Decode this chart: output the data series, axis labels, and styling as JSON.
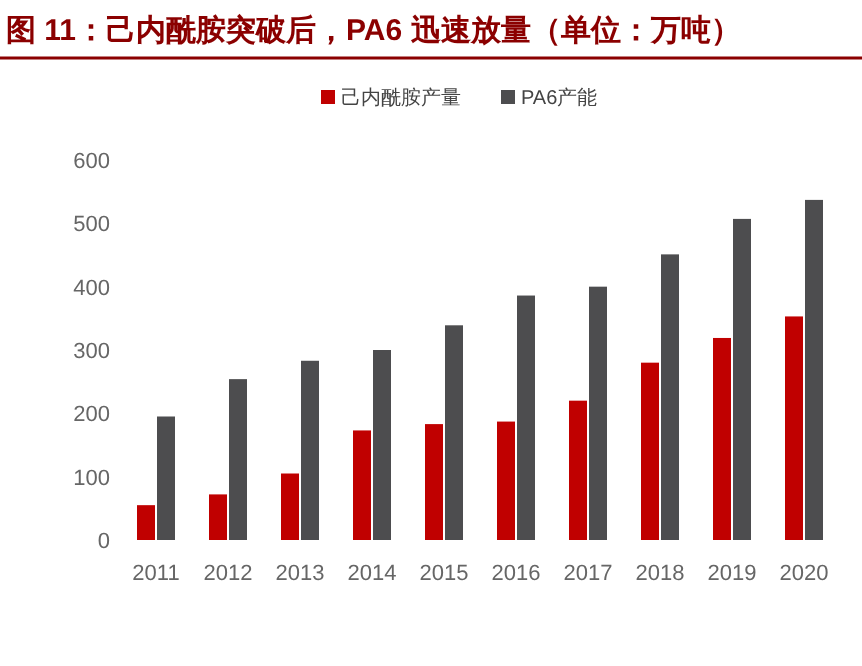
{
  "chart_data": {
    "type": "bar",
    "title": "图 11：己内酰胺突破后，PA6 迅速放量（单位：万吨）",
    "categories": [
      "2011",
      "2012",
      "2013",
      "2014",
      "2015",
      "2016",
      "2017",
      "2018",
      "2019",
      "2020"
    ],
    "series": [
      {
        "name": "己内酰胺产量",
        "color": "#c00000",
        "values": [
          55,
          72,
          105,
          173,
          183,
          187,
          220,
          280,
          319,
          353
        ]
      },
      {
        "name": "PA6产能",
        "color": "#4d4d4f",
        "values": [
          195,
          254,
          283,
          300,
          339,
          386,
          400,
          451,
          507,
          537
        ]
      }
    ],
    "ylim": [
      0,
      600
    ],
    "yticks": [
      0,
      100,
      200,
      300,
      400,
      500,
      600
    ],
    "grid": false,
    "legend": "top"
  }
}
